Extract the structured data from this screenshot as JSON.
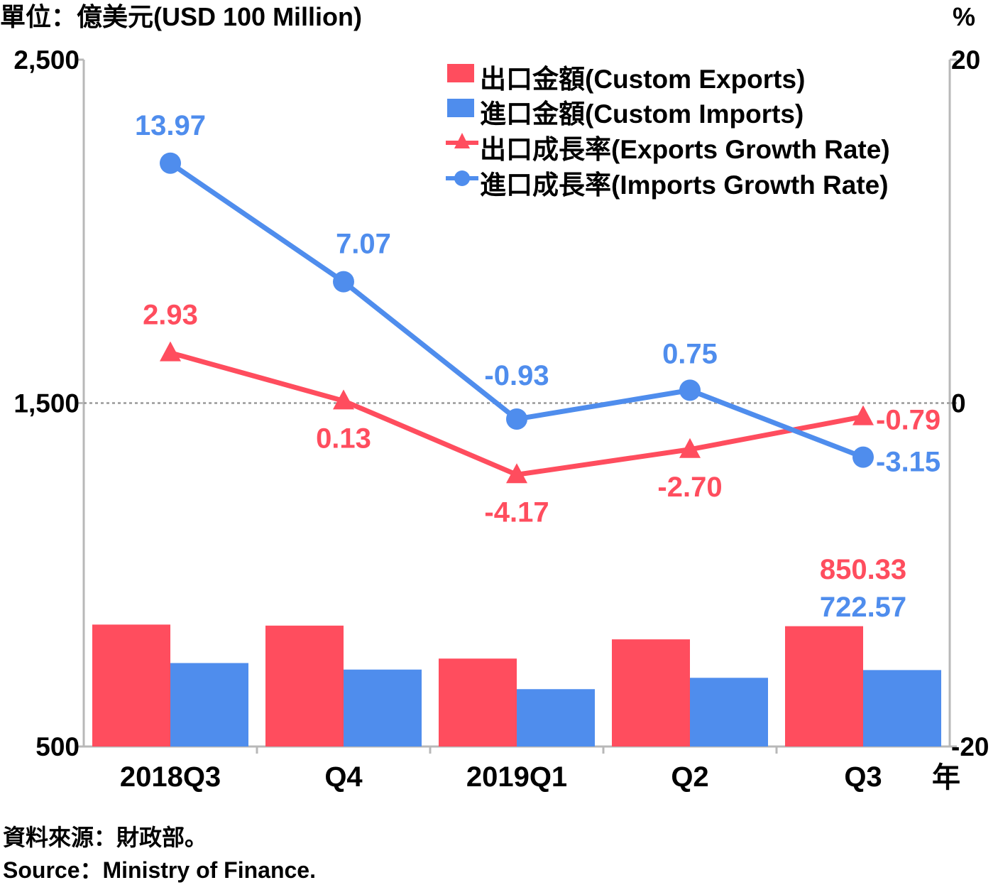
{
  "chart_data": {
    "type": "bar+line",
    "left_unit_label": "單位：億美元(USD 100 Million)",
    "right_unit_label": "%",
    "x_unit_label": "年",
    "categories": [
      "2018Q3",
      "Q4",
      "2019Q1",
      "Q2",
      "Q3"
    ],
    "left_axis": {
      "min": 500,
      "max": 2500,
      "ticks": [
        "2,500",
        "1,500",
        "500"
      ],
      "tick_values": [
        2500,
        1500,
        500
      ]
    },
    "right_axis": {
      "min": -20,
      "max": 20,
      "ticks": [
        "20",
        "0",
        "-20"
      ],
      "tick_values": [
        20,
        0,
        -20
      ]
    },
    "zero_line": "dotted",
    "series": [
      {
        "name": "出口金額(Custom Exports)",
        "kind": "bar",
        "axis": "left",
        "color": "#ff4d5e",
        "values": [
          855,
          852,
          756,
          812,
          850.33
        ],
        "data_labels": [
          "",
          "",
          "",
          "",
          "850.33"
        ]
      },
      {
        "name": "進口金額(Custom Imports)",
        "kind": "bar",
        "axis": "left",
        "color": "#4f8ded",
        "values": [
          743,
          724,
          667,
          700,
          722.57
        ],
        "data_labels": [
          "",
          "",
          "",
          "",
          "722.57"
        ]
      },
      {
        "name": "出口成長率(Exports Growth Rate)",
        "kind": "line",
        "marker": "triangle",
        "axis": "right",
        "color": "#ff4d5e",
        "values": [
          2.93,
          0.13,
          -4.17,
          -2.7,
          -0.79
        ],
        "data_labels": [
          "2.93",
          "0.13",
          "-4.17",
          "-2.70",
          "-0.79"
        ]
      },
      {
        "name": "進口成長率(Imports Growth Rate)",
        "kind": "line",
        "marker": "circle",
        "axis": "right",
        "color": "#4f8ded",
        "values": [
          13.97,
          7.07,
          -0.93,
          0.75,
          -3.15
        ],
        "data_labels": [
          "13.97",
          "7.07",
          "-0.93",
          "0.75",
          "-3.15"
        ]
      }
    ],
    "legend_placement": "top-right"
  },
  "source_zh": "資料來源：財政部。",
  "source_en": "Source：Ministry of Finance."
}
